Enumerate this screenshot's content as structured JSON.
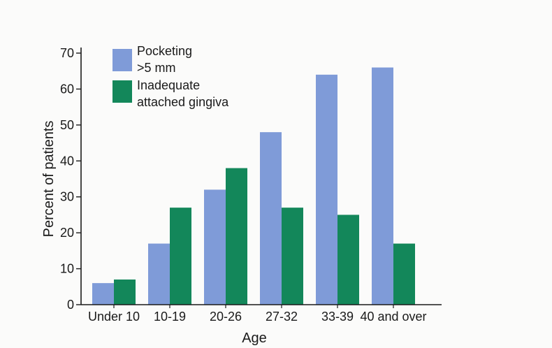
{
  "chart_data": {
    "type": "bar",
    "title": "",
    "xlabel": "Age",
    "ylabel": "Percent of patients",
    "categories": [
      "Under 10",
      "10-19",
      "20-26",
      "27-32",
      "33-39",
      "40 and over"
    ],
    "ylim": [
      0,
      70
    ],
    "yticks": [
      "0",
      "10",
      "20",
      "30",
      "40",
      "50",
      "60",
      "70"
    ],
    "grid": false,
    "legend_position": "top-left",
    "series": [
      {
        "name_lines": [
          "Pocketing",
          ">5 mm"
        ],
        "color": "#7f9bd8",
        "values": [
          6,
          17,
          32,
          48,
          64,
          66
        ]
      },
      {
        "name_lines": [
          "Inadequate",
          "attached gingiva"
        ],
        "color": "#13875a",
        "values": [
          7,
          27,
          38,
          27,
          25,
          17
        ]
      }
    ]
  }
}
